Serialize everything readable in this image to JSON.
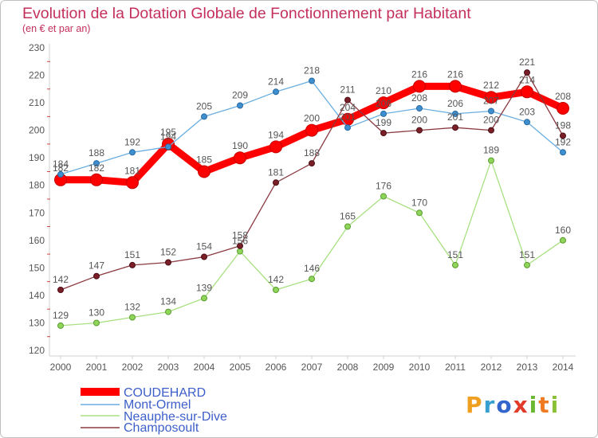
{
  "chart_data": {
    "type": "line",
    "title": "Evolution de la Dotation Globale de Fonctionnement par Habitant",
    "subtitle": "(en € et par an)",
    "x": [
      2000,
      2001,
      2002,
      2003,
      2004,
      2005,
      2006,
      2007,
      2008,
      2009,
      2010,
      2011,
      2012,
      2013,
      2014
    ],
    "ylim": [
      120,
      230
    ],
    "yticks": [
      120,
      130,
      140,
      150,
      160,
      170,
      180,
      190,
      200,
      210,
      220,
      230
    ],
    "grid": false,
    "legend_position": "bottom-left",
    "series": [
      {
        "name": "COUDEHARD",
        "color": "#ff0000",
        "marker_color": "#ff0000",
        "marker_edge": "#c40000",
        "values": [
          182,
          182,
          181,
          195,
          185,
          190,
          194,
          200,
          204,
          210,
          216,
          216,
          212,
          214,
          208
        ]
      },
      {
        "name": "Mont-Ormel",
        "color": "#6aaee0",
        "marker_color": "#3d8fd0",
        "marker_edge": "#2a6aa0",
        "values": [
          184,
          188,
          192,
          194,
          205,
          209,
          214,
          218,
          201,
          206,
          208,
          206,
          207,
          203,
          192
        ]
      },
      {
        "name": "Neauphe-sur-Dive",
        "color": "#a8e080",
        "marker_color": "#8fd55a",
        "marker_edge": "#5a9a30",
        "values": [
          129,
          130,
          132,
          134,
          139,
          156,
          142,
          146,
          165,
          176,
          170,
          151,
          189,
          151,
          160
        ]
      },
      {
        "name": "Champosoult",
        "color": "#8a3a40",
        "marker_color": "#7a1e28",
        "marker_edge": "#4a0e14",
        "values": [
          142,
          147,
          151,
          152,
          154,
          158,
          181,
          188,
          211,
          199,
          200,
          201,
          200,
          221,
          198
        ]
      }
    ]
  },
  "logo": {
    "letters": [
      "P",
      "r",
      "o",
      "x",
      "i",
      "t",
      "i"
    ],
    "colors": [
      "#f0a020",
      "#38a0d0",
      "#3366cc",
      "#e23a2a",
      "#6ab830",
      "#f07a20",
      "#8ac038"
    ]
  }
}
